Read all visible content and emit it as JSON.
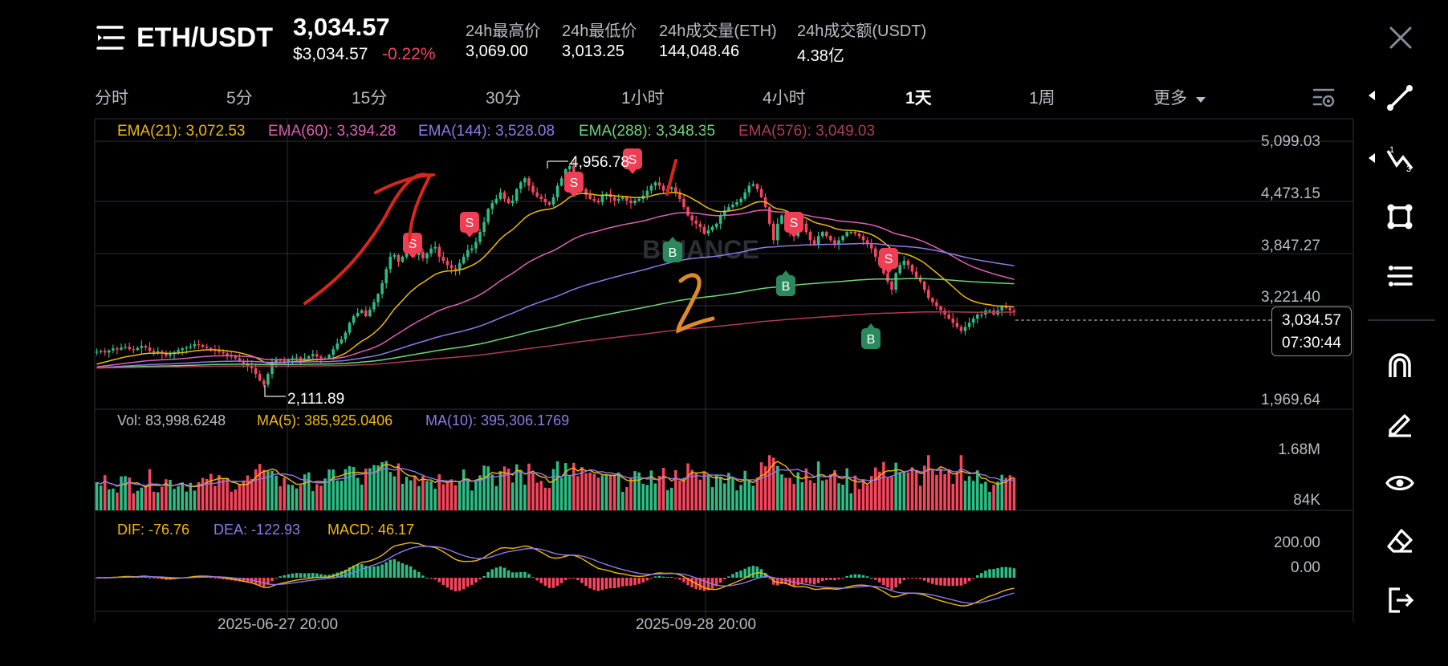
{
  "header": {
    "pair": "ETH/USDT",
    "last_price": "3,034.57",
    "last_price_usd": "$3,034.57",
    "change_pct": "-0.22%",
    "stats": [
      {
        "label": "24h最高价",
        "value": "3,069.00"
      },
      {
        "label": "24h最低价",
        "value": "3,013.25"
      },
      {
        "label": "24h成交量(ETH)",
        "value": "144,048.46"
      },
      {
        "label": "24h成交额(USDT)",
        "value": "4.38亿"
      }
    ]
  },
  "timeframes": [
    "分时",
    "5分",
    "15分",
    "30分",
    "1小时",
    "4小时",
    "1天",
    "1周",
    "更多"
  ],
  "active_timeframe": "1天",
  "ema_legend": [
    {
      "text": "EMA(21): 3,072.53",
      "color": "#f0b90b"
    },
    {
      "text": "EMA(60): 3,394.28",
      "color": "#e05fb8"
    },
    {
      "text": "EMA(144): 3,528.08",
      "color": "#8d7be6"
    },
    {
      "text": "EMA(288): 3,348.35",
      "color": "#6fd67a"
    },
    {
      "text": "EMA(576): 3,049.03",
      "color": "#b03a5c"
    }
  ],
  "price_axis": [
    "5,099.03",
    "4,473.15",
    "3,847.27",
    "3,221.40",
    "1,969.64"
  ],
  "price_box": {
    "price": "3,034.57",
    "countdown": "07:30:44"
  },
  "annotations": {
    "high": "4,956.78",
    "low": "2,111.89",
    "mark_1": "1",
    "mark_2": "2"
  },
  "volume": {
    "vol": "Vol: 83,998.6248",
    "ma5": "MA(5): 385,925.0406",
    "ma10": "MA(10): 395,306.1769",
    "axis": [
      "1.68M",
      "84K"
    ]
  },
  "macd": {
    "dif": "DIF: -76.76",
    "dea": "DEA: -122.93",
    "macd": "MACD: 46.17",
    "axis": [
      "200.00",
      "0.00"
    ]
  },
  "dates": [
    "2025-06-27 20:00",
    "2025-09-28 20:00"
  ],
  "signals": {
    "sell": "S",
    "buy": "B"
  },
  "watermark": "BINANCE",
  "colors": {
    "up": "#2ebd85",
    "down": "#f6465d",
    "accent": "#f0b90b"
  },
  "icons": [
    "menu-icon",
    "close-icon",
    "chart-settings-icon",
    "trendline-icon",
    "fib-icon",
    "shape-icon",
    "indicator-icon",
    "magnet-icon",
    "pencil-icon",
    "eye-icon",
    "eraser-icon",
    "exit-icon"
  ],
  "chart_data": {
    "type": "candlestick",
    "title": "ETH/USDT",
    "interval": "1天",
    "ylim": [
      1969.64,
      5099.03
    ],
    "price_ticks": [
      5099.03,
      4473.15,
      3847.27,
      3221.4,
      1969.64
    ],
    "last_price": 3034.57,
    "period_high": 4956.78,
    "period_low": 2111.89,
    "x_ticks": [
      "2025-06-27 20:00",
      "2025-09-28 20:00"
    ],
    "ema_values": {
      "EMA(21)": 3072.53,
      "EMA(60)": 3394.28,
      "EMA(144)": 3528.08,
      "EMA(288)": 3348.35,
      "EMA(576)": 3049.03
    },
    "volume_values": {
      "Vol": 83998.6248,
      "MA(5)": 385925.0406,
      "MA(10)": 395306.1769
    },
    "macd_values": {
      "DIF": -76.76,
      "DEA": -122.93,
      "MACD": 46.17
    },
    "close_series": [
      2550,
      2560,
      2540,
      2565,
      2590,
      2575,
      2600,
      2610,
      2580,
      2570,
      2595,
      2620,
      2600,
      2560,
      2540,
      2555,
      2530,
      2500,
      2520,
      2545,
      2570,
      2590,
      2600,
      2615,
      2640,
      2630,
      2610,
      2595,
      2580,
      2560,
      2545,
      2530,
      2510,
      2490,
      2470,
      2440,
      2410,
      2380,
      2350,
      2280,
      2200,
      2150,
      2280,
      2420,
      2460,
      2440,
      2430,
      2455,
      2470,
      2480,
      2455,
      2470,
      2495,
      2520,
      2490,
      2470,
      2470,
      2510,
      2580,
      2650,
      2700,
      2780,
      2900,
      2980,
      3020,
      3050,
      2980,
      3060,
      3150,
      3250,
      3380,
      3550,
      3700,
      3720,
      3640,
      3700,
      3760,
      3800,
      3720,
      3760,
      3680,
      3740,
      3800,
      3820,
      3700,
      3650,
      3600,
      3560,
      3540,
      3620,
      3700,
      3780,
      3800,
      3880,
      4000,
      4120,
      4280,
      4350,
      4400,
      4480,
      4400,
      4350,
      4380,
      4520,
      4600,
      4650,
      4560,
      4480,
      4430,
      4400,
      4360,
      4330,
      4420,
      4560,
      4650,
      4760,
      4800,
      4700,
      4620,
      4520,
      4450,
      4400,
      4380,
      4360,
      4440,
      4460,
      4420,
      4380,
      4400,
      4420,
      4380,
      4350,
      4380,
      4400,
      4440,
      4500,
      4560,
      4600,
      4560,
      4500,
      4520,
      4540,
      4480,
      4400,
      4300,
      4200,
      4140,
      4100,
      4060,
      3980,
      4020,
      4060,
      4100,
      4200,
      4260,
      4300,
      4330,
      4360,
      4400,
      4480,
      4560,
      4580,
      4520,
      4420,
      4300,
      4100,
      3900,
      4100,
      4200,
      4100,
      4000,
      3950,
      4050,
      4100,
      4000,
      3900,
      3850,
      3950,
      4000,
      3950,
      3900,
      3850,
      3900,
      3950,
      4000,
      4000,
      3980,
      3950,
      3900,
      3850,
      3800,
      3700,
      3600,
      3500,
      3400,
      3300,
      3500,
      3600,
      3650,
      3600,
      3520,
      3450,
      3400,
      3300,
      3200,
      3150,
      3100,
      3050,
      3000,
      2950,
      2900,
      2850,
      2800,
      2850,
      2900,
      2950,
      3000,
      3000,
      3050,
      3050,
      3000,
      3050,
      3100,
      3080,
      3050,
      3034
    ]
  }
}
